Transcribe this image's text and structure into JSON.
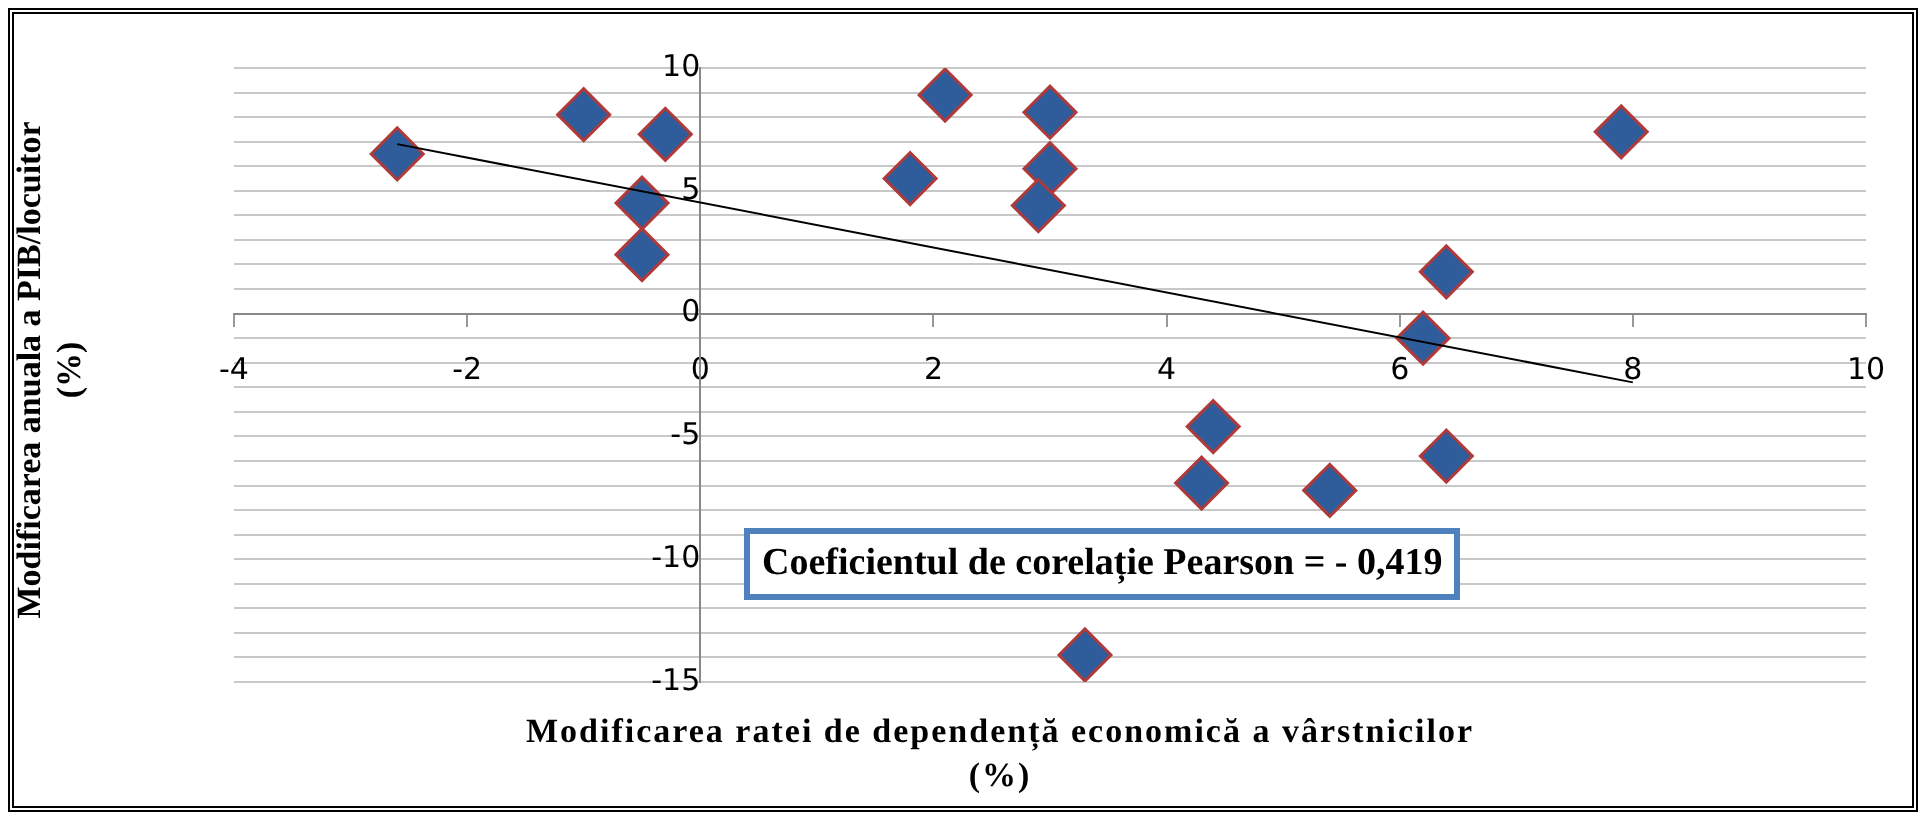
{
  "chart_data": {
    "type": "scatter",
    "xlabel": "Modificarea ratei de dependență economică a vârstnicilor\n(%)",
    "ylabel": "Modificarea anuala a PIB/locuitor\n(%)",
    "annotations": [
      "Coeficientul de corelație Pearson = - 0,419"
    ],
    "xlim": [
      -4,
      10
    ],
    "xticks": [
      -4,
      -2,
      0,
      2,
      4,
      6,
      8,
      10
    ],
    "ylim": [
      -15,
      10
    ],
    "yticks": [
      -15,
      {
        "value": -14,
        "label": null
      },
      {
        "value": -13,
        "label": null
      },
      {
        "value": -12,
        "label": null
      },
      {
        "value": -11,
        "label": null
      },
      -10,
      {
        "value": -9,
        "label": null
      },
      {
        "value": -8,
        "label": null
      },
      {
        "value": -7,
        "label": null
      },
      {
        "value": -6,
        "label": null
      },
      -5,
      {
        "value": -4,
        "label": null
      },
      {
        "value": -3,
        "label": null
      },
      {
        "value": -2,
        "label": null
      },
      {
        "value": -1,
        "label": null
      },
      0,
      {
        "value": 1,
        "label": null
      },
      {
        "value": 2,
        "label": null
      },
      {
        "value": 3,
        "label": null
      },
      {
        "value": 4,
        "label": null
      },
      5,
      {
        "value": 6,
        "label": null
      },
      {
        "value": 7,
        "label": null
      },
      {
        "value": 8,
        "label": null
      },
      {
        "value": 9,
        "label": null
      },
      10
    ],
    "grid": "y",
    "legend": false,
    "series": [
      {
        "marker": "diamond",
        "color": "#2f5d9b",
        "x": [
          -2.6,
          -1.0,
          -0.3,
          -0.5,
          -0.5,
          2.1,
          1.8,
          3.0,
          3.0,
          2.9,
          7.9,
          6.4,
          6.2,
          4.4,
          4.3,
          5.4,
          6.4,
          3.3
        ],
        "values": [
          6.5,
          8.1,
          7.3,
          4.5,
          2.4,
          8.9,
          5.5,
          8.2,
          5.9,
          4.4,
          7.4,
          1.7,
          -1.0,
          -4.6,
          -6.9,
          -7.2,
          -5.8,
          -13.9
        ]
      },
      {
        "type": "line",
        "marker": "none",
        "color": "#000000",
        "x": [
          -2.6,
          8
        ],
        "values": [
          6.9,
          -2.8
        ]
      }
    ]
  }
}
